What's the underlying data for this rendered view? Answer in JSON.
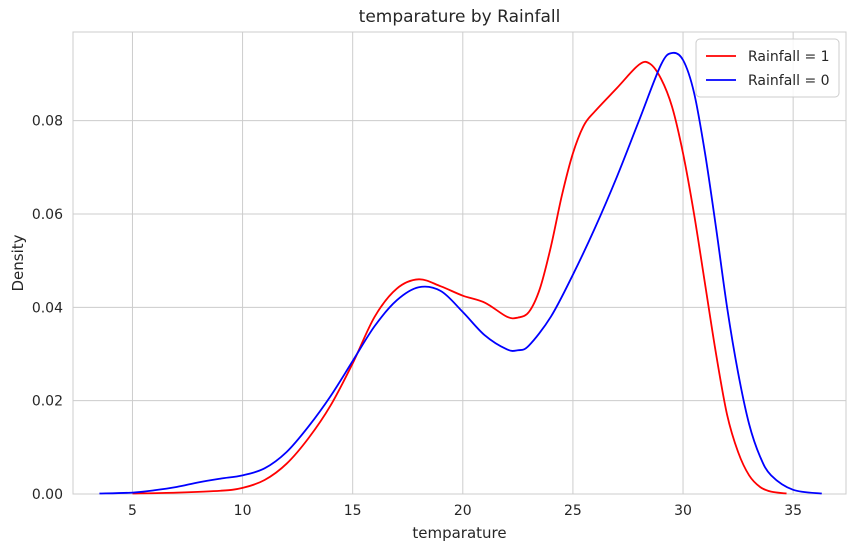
{
  "chart_data": {
    "type": "line",
    "title": "temparature by Rainfall",
    "xlabel": "temparature",
    "ylabel": "Density",
    "xlim": [
      2.3,
      37.4
    ],
    "ylim": [
      0,
      0.099
    ],
    "xticks": [
      5,
      10,
      15,
      20,
      25,
      30,
      35
    ],
    "xtick_labels": [
      "5",
      "10",
      "15",
      "20",
      "25",
      "30",
      "35"
    ],
    "yticks": [
      0,
      0.02,
      0.04,
      0.06,
      0.08
    ],
    "ytick_labels": [
      "0.00",
      "0.02",
      "0.04",
      "0.06",
      "0.08"
    ],
    "grid": true,
    "legend_position": "top-right",
    "series": [
      {
        "name": "Rainfall = 1",
        "color": "#ff0000",
        "x": [
          5,
          7,
          9,
          10,
          11,
          12,
          13,
          14,
          15,
          16,
          17,
          18,
          19,
          20,
          21,
          22,
          22.5,
          23,
          23.5,
          24,
          24.5,
          25,
          25.5,
          26,
          27,
          28,
          28.5,
          29,
          29.5,
          30,
          30.5,
          31,
          31.5,
          32,
          32.5,
          33,
          33.5,
          34,
          34.7
        ],
        "y": [
          0.0001,
          0.0003,
          0.0007,
          0.0013,
          0.003,
          0.0065,
          0.012,
          0.019,
          0.028,
          0.038,
          0.044,
          0.046,
          0.0445,
          0.0425,
          0.041,
          0.038,
          0.0378,
          0.039,
          0.044,
          0.053,
          0.064,
          0.073,
          0.079,
          0.082,
          0.087,
          0.092,
          0.0922,
          0.089,
          0.083,
          0.073,
          0.06,
          0.045,
          0.03,
          0.017,
          0.009,
          0.004,
          0.0015,
          0.0005,
          0.0001
        ]
      },
      {
        "name": "Rainfall = 0",
        "color": "#0000ff",
        "x": [
          3.5,
          5,
          6,
          7,
          8,
          9,
          10,
          11,
          12,
          13,
          14,
          15,
          16,
          17,
          18,
          19,
          20,
          21,
          22,
          22.5,
          23,
          24,
          25,
          26,
          27,
          28,
          29,
          29.5,
          30,
          30.5,
          31,
          31.5,
          32,
          32.5,
          33,
          33.5,
          34,
          35,
          36.3
        ],
        "y": [
          0.0001,
          0.0003,
          0.0008,
          0.0015,
          0.0025,
          0.0033,
          0.004,
          0.0055,
          0.009,
          0.0145,
          0.021,
          0.0285,
          0.036,
          0.0415,
          0.0443,
          0.0435,
          0.039,
          0.034,
          0.031,
          0.0308,
          0.0318,
          0.038,
          0.047,
          0.057,
          0.068,
          0.08,
          0.092,
          0.0945,
          0.093,
          0.086,
          0.073,
          0.057,
          0.04,
          0.026,
          0.015,
          0.008,
          0.004,
          0.0009,
          0.0001
        ]
      }
    ]
  }
}
